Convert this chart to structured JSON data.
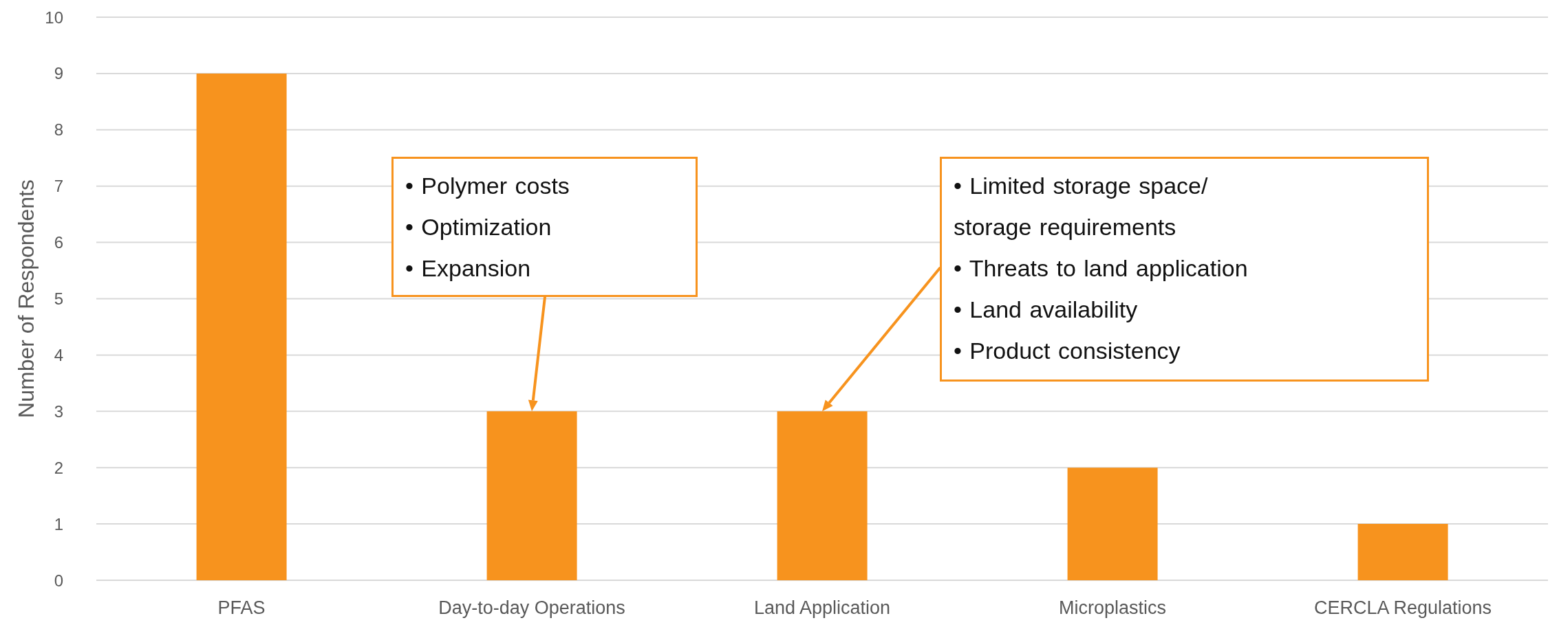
{
  "chart_data": {
    "type": "bar",
    "ylabel": "Number of Respondents",
    "categories": [
      "PFAS",
      "Day-to-day Operations",
      "Land Application",
      "Microplastics",
      "CERCLA Regulations"
    ],
    "values": [
      9,
      3,
      3,
      2,
      1
    ],
    "color": "#f7931e",
    "ylim": [
      0,
      10
    ],
    "yticks": [
      0,
      1,
      2,
      3,
      4,
      5,
      6,
      7,
      8,
      9,
      10
    ],
    "grid": "y",
    "annotations": [
      "• Polymer costs\n• Optimization\n• Expansion",
      "• Limited storage space/\nstorage requirements\n• Threats to land application\n• Land availability\n• Product consistency"
    ]
  }
}
